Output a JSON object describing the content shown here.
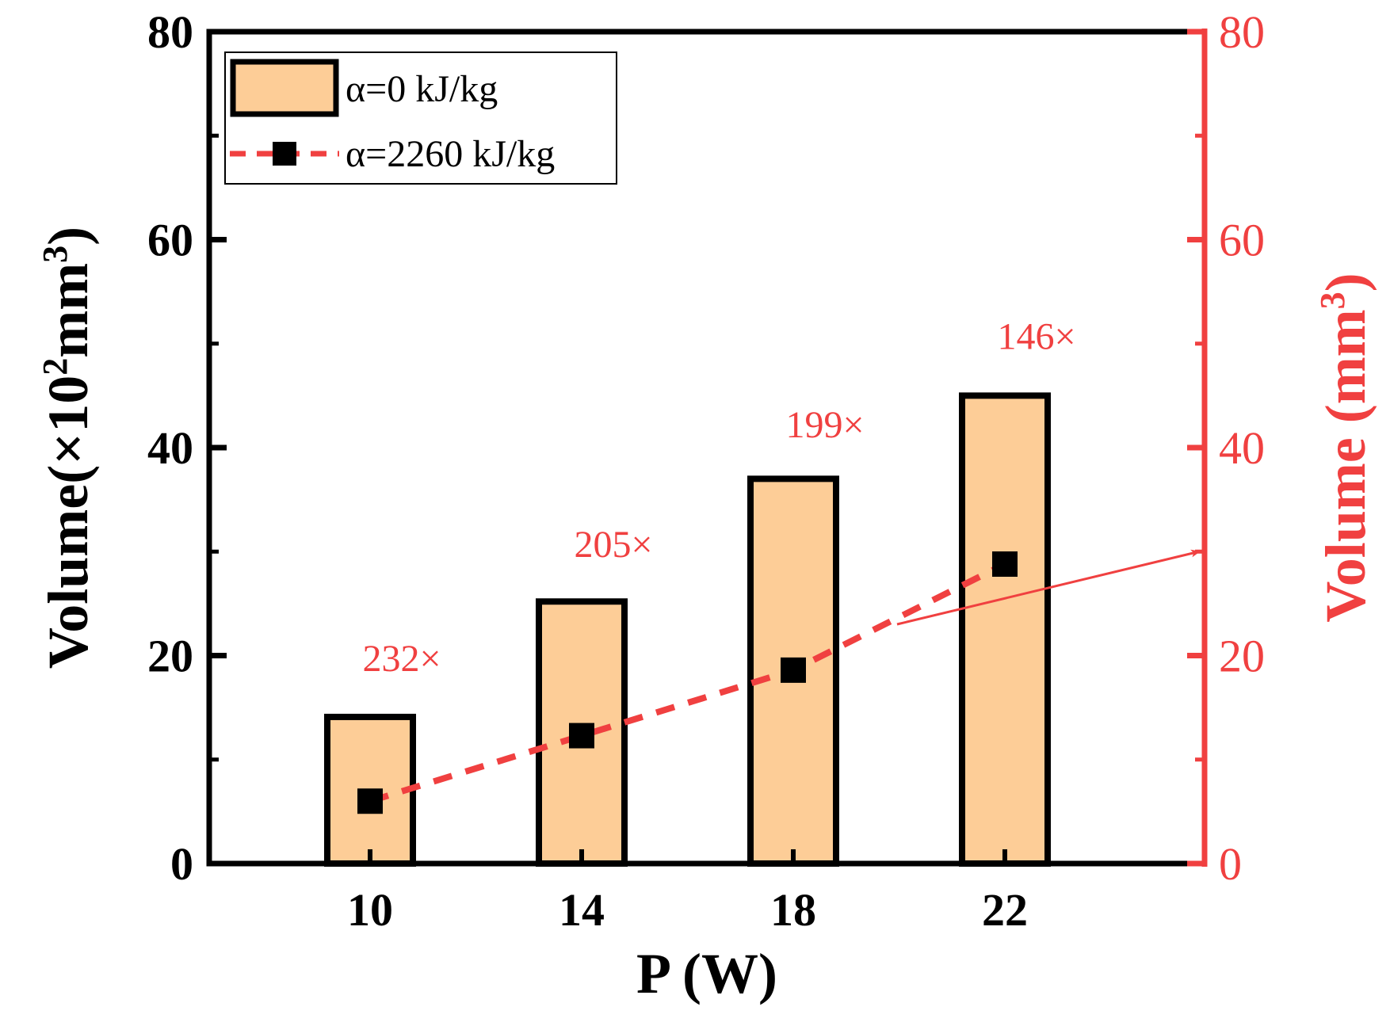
{
  "chart_data": {
    "type": "bar",
    "categories": [
      "10",
      "14",
      "18",
      "22"
    ],
    "xlabel": "P (W)",
    "ylabel_left": {
      "prefix": "Volume(×10",
      "sup": "2",
      "mid": "mm",
      "sup2": "3",
      "suffix": ")"
    },
    "ylabel_right": {
      "prefix": "Volume (mm",
      "sup": "3",
      "suffix": ")"
    },
    "ylim_left": [
      0,
      80
    ],
    "ylim_right": [
      0,
      80
    ],
    "yticks_left": [
      "0",
      "20",
      "40",
      "60",
      "80"
    ],
    "yticks_right": [
      "0",
      "20",
      "40",
      "60",
      "80"
    ],
    "grid": false,
    "legend_position": "top-left",
    "series": [
      {
        "name": "α=0 kJ/kg",
        "kind": "bar",
        "axis": "left",
        "values": [
          14.1,
          25.2,
          37.0,
          45.0
        ],
        "color": "#FDCD97",
        "edge_color": "#000000"
      },
      {
        "name": "α=2260 kJ/kg",
        "kind": "line",
        "axis": "right",
        "values": [
          6.0,
          12.3,
          18.6,
          28.8
        ],
        "color": "#F04040",
        "marker_color": "#000000"
      }
    ],
    "annotations": [
      {
        "category": "10",
        "text": "232×",
        "y": 18.5
      },
      {
        "category": "14",
        "text": "205×",
        "y": 29.5
      },
      {
        "category": "18",
        "text": "199×",
        "y": 41.0
      },
      {
        "category": "22",
        "text": "146×",
        "y": 49.5
      }
    ],
    "arrow": {
      "direction": "right",
      "target_axis": "right",
      "color": "#F04040"
    }
  }
}
